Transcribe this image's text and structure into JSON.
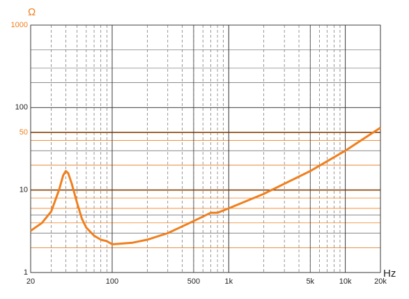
{
  "chart_data": {
    "type": "line",
    "y_label": "Ω",
    "x_label": "Hz",
    "xscale": "log",
    "yscale": "log",
    "xlim": [
      20,
      20000
    ],
    "ylim": [
      1,
      1000
    ],
    "xticks": [
      20,
      100,
      500,
      {
        "value": 1000,
        "label": "1k"
      },
      {
        "value": 5000,
        "label": "5k"
      },
      {
        "value": 10000,
        "label": "10k"
      },
      {
        "value": 20000,
        "label": "20k"
      }
    ],
    "yticks": [
      1,
      10,
      50,
      100,
      1000
    ],
    "ytick_colors": [
      "#222",
      "#222",
      "#f07f1e",
      "#222",
      "#f07f1e"
    ],
    "grid": true,
    "highlight_lines": [
      10,
      50
    ],
    "highlight_minor": [
      2,
      4,
      6,
      8,
      20,
      40
    ],
    "label_color": "#f07f1e",
    "series": [
      {
        "color": "#f07f1e",
        "x": [
          20,
          25,
          30,
          35,
          38,
          40,
          42,
          45,
          50,
          55,
          60,
          70,
          80,
          90,
          100,
          150,
          200,
          300,
          500,
          700,
          800,
          1000,
          2000,
          5000,
          10000,
          20000
        ],
        "values": [
          3.2,
          4,
          5.5,
          10,
          15,
          17,
          16,
          12,
          7,
          4.5,
          3.5,
          2.8,
          2.5,
          2.4,
          2.2,
          2.3,
          2.5,
          3.0,
          4.2,
          5.3,
          5.3,
          6,
          9,
          17,
          30,
          57
        ]
      }
    ]
  }
}
